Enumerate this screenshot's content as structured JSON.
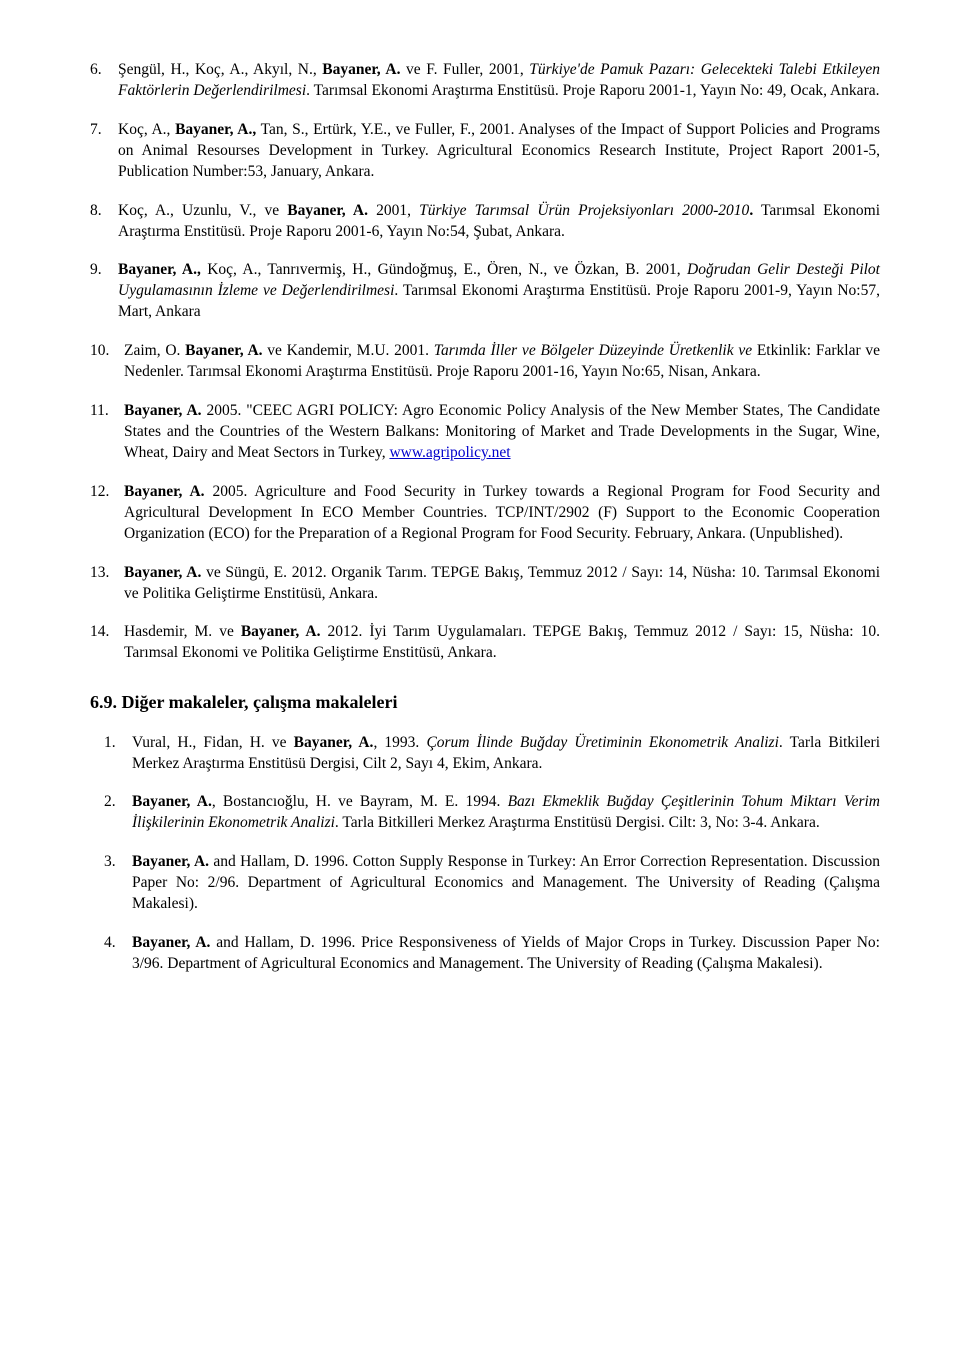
{
  "items": [
    {
      "num": "6.",
      "html": "Şengül, H., Koç, A., Akyıl, N., <b>Bayaner, A.</b> ve F. Fuller, 2001, <i>Türkiye'de Pamuk Pazarı: Gelecekteki Talebi Etkileyen Faktörlerin Değerlendirilmesi</i>. Tarımsal Ekonomi Araştırma Enstitüsü. Proje Raporu 2001-1, Yayın No: 49, Ocak, Ankara."
    },
    {
      "num": "7.",
      "html": "Koç, A., <b>Bayaner, A.,</b> Tan, S., Ertürk, Y.E., ve Fuller, F., 2001. Analyses of the Impact of Support Policies and Programs on Animal Resourses Development in Turkey. Agricultural Economics Research Institute, Project Raport 2001-5, Publication Number:53, January, Ankara."
    },
    {
      "num": "8.",
      "html": "Koç, A., Uzunlu, V., ve <b>Bayaner, A.</b> 2001, <i>Türkiye Tarımsal Ürün Projeksiyonları 2000-2010</i><b>.</b> Tarımsal Ekonomi Araştırma Enstitüsü. Proje Raporu 2001-6, Yayın No:54, Şubat, Ankara."
    },
    {
      "num": "9.",
      "html": "<b>Bayaner, A.,</b> Koç, A., Tanrıvermiş, H., Gündoğmuş, E., Ören, N., ve Özkan, B. 2001, <i>Doğrudan Gelir Desteği Pilot Uygulamasının İzleme ve Değerlendirilmesi</i>. Tarımsal Ekonomi Araştırma Enstitüsü. Proje Raporu 2001-9, Yayın No:57, Mart, Ankara"
    },
    {
      "num": "10.",
      "wide": true,
      "html": "Zaim, O. <b>Bayaner, A.</b> ve Kandemir, M.U. 2001. <i>Tarımda İller ve Bölgeler Düzeyinde Üretkenlik ve </i>Etkinlik: Farklar ve Nedenler. Tarımsal Ekonomi Araştırma Enstitüsü. Proje Raporu 2001-16, Yayın No:65, Nisan, Ankara."
    },
    {
      "num": "11.",
      "wide": true,
      "html": "<b>Bayaner, A.</b> 2005. \"CEEC AGRI POLICY: Agro Economic Policy Analysis of the New Member States, The Candidate States and the Countries of the Western Balkans: Monitoring of Market and Trade Developments in the Sugar, Wine, Wheat, Dairy and Meat Sectors in Turkey, <span class=\"link\">www.agripolicy.net</span>"
    },
    {
      "num": "12.",
      "wide": true,
      "html": "<b>Bayaner, A.</b> 2005. Agriculture and Food Security in Turkey towards a Regional Program for Food Security and Agricultural Development In ECO Member Countries. TCP/INT/2902 (F) Support to the Economic Cooperation Organization (ECO) for the Preparation of a Regional Program for Food Security.  February, Ankara. (Unpublished)."
    },
    {
      "num": "13.",
      "wide": true,
      "html": "<b>Bayaner, A.</b> ve Süngü, E. 2012. Organik Tarım. TEPGE Bakış,  Temmuz 2012 / Sayı: 14, Nüsha: 10. Tarımsal Ekonomi ve Politika Geliştirme Enstitüsü, Ankara."
    },
    {
      "num": "14.",
      "wide": true,
      "html": "Hasdemir, M. ve <b>Bayaner, A.</b> 2012. İyi Tarım Uygulamaları. TEPGE Bakış,  Temmuz 2012 / Sayı: 15, Nüsha: 10. Tarımsal Ekonomi ve Politika Geliştirme Enstitüsü, Ankara."
    }
  ],
  "heading": "6.9. Diğer makaleler, çalışma makaleleri",
  "items2": [
    {
      "num": "1.",
      "html": "Vural, H., Fidan, H. ve <b>Bayaner, A.</b>, 1993. <i>Çorum İlinde Buğday Üretiminin Ekonometrik Analizi</i>. Tarla Bitkileri Merkez Araştırma Enstitüsü Dergisi, Cilt 2, Sayı 4, Ekim, Ankara."
    },
    {
      "num": "2.",
      "html": "<b>Bayaner, A.</b>, Bostancıoğlu, H. ve Bayram, M. E. 1994. <i>Bazı Ekmeklik Buğday Çeşitlerinin Tohum Miktarı Verim İlişkilerinin Ekonometrik Analizi</i>. Tarla Bitkilleri Merkez Araştırma Enstitüsü Dergisi. Cilt: 3, No: 3-4. Ankara."
    },
    {
      "num": "3.",
      "html": "<b>Bayaner, A.</b> and Hallam, D. 1996. Cotton Supply Response in Turkey: An Error Correction Representation. Discussion Paper No: 2/96. Department of Agricultural Economics and Management. The University of Reading (Çalışma Makalesi)."
    },
    {
      "num": "4.",
      "html": "<b>Bayaner, A.</b> and Hallam, D. 1996. Price Responsiveness of Yields of Major Crops in Turkey. Discussion Paper No: 3/96. Department of Agricultural Economics and Management. The University of Reading (Çalışma Makalesi)."
    }
  ]
}
